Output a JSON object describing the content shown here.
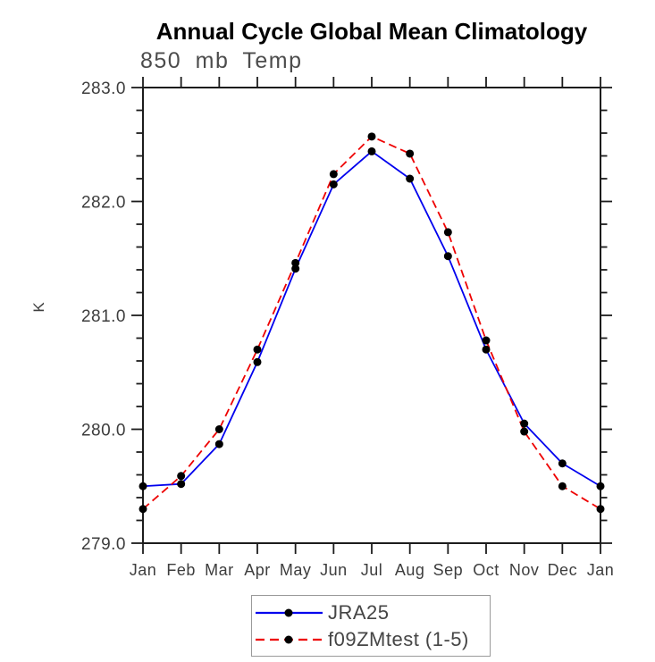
{
  "page": {
    "background": "#ffffff",
    "frame_color": "#1c1c1c"
  },
  "chart_data": {
    "type": "line",
    "title": "Annual Cycle Global Mean Climatology",
    "subtitle": "850 mb Temp",
    "ylabel": "K",
    "xlabel": "",
    "categories": [
      "Jan",
      "Feb",
      "Mar",
      "Apr",
      "May",
      "Jun",
      "Jul",
      "Aug",
      "Sep",
      "Oct",
      "Nov",
      "Dec",
      "Jan"
    ],
    "ylim": [
      279.0,
      283.0
    ],
    "ytick_labels": [
      "279.0",
      "280.0",
      "281.0",
      "282.0",
      "283.0"
    ],
    "ytick_major_step": 1.0,
    "ytick_minor_step": 0.2,
    "grid": false,
    "legend_position": "bottom-center",
    "series": [
      {
        "name": "JRA25",
        "color": "#0000ee",
        "line_style": "solid",
        "marker": "circle",
        "marker_color": "#000000",
        "values": [
          279.5,
          279.52,
          279.87,
          280.59,
          281.41,
          282.15,
          282.44,
          282.2,
          281.52,
          280.7,
          280.05,
          279.7,
          279.5
        ]
      },
      {
        "name": "f09ZMtest (1-5)",
        "color": "#ee0000",
        "line_style": "dashed",
        "marker": "circle",
        "marker_color": "#000000",
        "values": [
          279.3,
          279.59,
          280.0,
          280.7,
          281.46,
          282.24,
          282.57,
          282.42,
          281.73,
          280.78,
          279.98,
          279.5,
          279.3
        ]
      }
    ]
  }
}
